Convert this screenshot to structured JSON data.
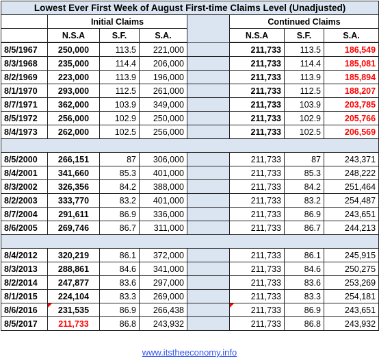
{
  "title": "Lowest Ever First Week of August  First-time Claims Level (Unadjusted)",
  "sections": {
    "initial": "Initial Claims",
    "continued": "Continued Claims"
  },
  "columns": {
    "nsa": "N.S.A",
    "sf": "S.F.",
    "sa": "S.A."
  },
  "rows": [
    {
      "date": "8/5/1967",
      "nsa": "250,000",
      "sf": "113.5",
      "sa": "221,000",
      "c_nsa": "211,733",
      "c_sf": "113.5",
      "c_sa": "186,549"
    },
    {
      "date": "8/3/1968",
      "nsa": "235,000",
      "sf": "114.4",
      "sa": "206,000",
      "c_nsa": "211,733",
      "c_sf": "114.4",
      "c_sa": "185,081"
    },
    {
      "date": "8/2/1969",
      "nsa": "223,000",
      "sf": "113.9",
      "sa": "196,000",
      "c_nsa": "211,733",
      "c_sf": "113.9",
      "c_sa": "185,894"
    },
    {
      "date": "8/1/1970",
      "nsa": "293,000",
      "sf": "112.5",
      "sa": "261,000",
      "c_nsa": "211,733",
      "c_sf": "112.5",
      "c_sa": "188,207"
    },
    {
      "date": "8/7/1971",
      "nsa": "362,000",
      "sf": "103.9",
      "sa": "349,000",
      "c_nsa": "211,733",
      "c_sf": "103.9",
      "c_sa": "203,785"
    },
    {
      "date": "8/5/1972",
      "nsa": "256,000",
      "sf": "102.9",
      "sa": "250,000",
      "c_nsa": "211,733",
      "c_sf": "102.9",
      "c_sa": "205,766"
    },
    {
      "date": "8/4/1973",
      "nsa": "262,000",
      "sf": "102.5",
      "sa": "256,000",
      "c_nsa": "211,733",
      "c_sf": "102.5",
      "c_sa": "206,569"
    },
    {
      "date": "8/5/2000",
      "nsa": "266,151",
      "sf": "87",
      "sa": "306,000",
      "c_nsa": "211,733",
      "c_sf": "87",
      "c_sa": "243,371"
    },
    {
      "date": "8/4/2001",
      "nsa": "341,660",
      "sf": "85.3",
      "sa": "401,000",
      "c_nsa": "211,733",
      "c_sf": "85.3",
      "c_sa": "248,222"
    },
    {
      "date": "8/3/2002",
      "nsa": "326,356",
      "sf": "84.2",
      "sa": "388,000",
      "c_nsa": "211,733",
      "c_sf": "84.2",
      "c_sa": "251,464"
    },
    {
      "date": "8/2/2003",
      "nsa": "333,770",
      "sf": "83.2",
      "sa": "401,000",
      "c_nsa": "211,733",
      "c_sf": "83.2",
      "c_sa": "254,487"
    },
    {
      "date": "8/7/2004",
      "nsa": "291,611",
      "sf": "86.9",
      "sa": "336,000",
      "c_nsa": "211,733",
      "c_sf": "86.9",
      "c_sa": "243,651"
    },
    {
      "date": "8/6/2005",
      "nsa": "269,746",
      "sf": "86.7",
      "sa": "311,000",
      "c_nsa": "211,733",
      "c_sf": "86.7",
      "c_sa": "244,213"
    },
    {
      "date": "8/4/2012",
      "nsa": "320,219",
      "sf": "86.1",
      "sa": "372,000",
      "c_nsa": "211,733",
      "c_sf": "86.1",
      "c_sa": "245,915"
    },
    {
      "date": "8/3/2013",
      "nsa": "288,861",
      "sf": "84.6",
      "sa": "341,000",
      "c_nsa": "211,733",
      "c_sf": "84.6",
      "c_sa": "250,275"
    },
    {
      "date": "8/2/2014",
      "nsa": "247,877",
      "sf": "83.6",
      "sa": "297,000",
      "c_nsa": "211,733",
      "c_sf": "83.6",
      "c_sa": "253,269"
    },
    {
      "date": "8/1/2015",
      "nsa": "224,104",
      "sf": "83.3",
      "sa": "269,000",
      "c_nsa": "211,733",
      "c_sf": "83.3",
      "c_sa": "254,181"
    },
    {
      "date": "8/6/2016",
      "nsa": "231,535",
      "sf": "86.9",
      "sa": "266,438",
      "c_nsa": "211,733",
      "c_sf": "86.9",
      "c_sa": "243,651"
    },
    {
      "date": "8/5/2017",
      "nsa": "211,733",
      "sf": "86.8",
      "sa": "243,932",
      "c_nsa": "211,733",
      "c_sf": "86.8",
      "c_sa": "243,932"
    }
  ],
  "footer": "www.itstheeconomy.info",
  "colors": {
    "header_fill": "#dbe5f1",
    "highlight": "#ff0000",
    "link": "#3355ee"
  }
}
